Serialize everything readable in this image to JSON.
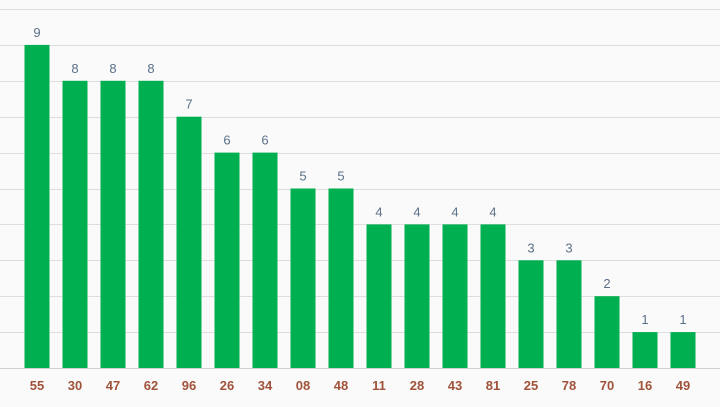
{
  "chart_data": {
    "type": "bar",
    "categories": [
      "55",
      "30",
      "47",
      "62",
      "96",
      "26",
      "34",
      "08",
      "48",
      "11",
      "28",
      "43",
      "81",
      "25",
      "78",
      "70",
      "16",
      "49"
    ],
    "values": [
      9,
      8,
      8,
      8,
      7,
      6,
      6,
      5,
      5,
      4,
      4,
      4,
      4,
      3,
      3,
      2,
      1,
      1
    ],
    "ylim": [
      0,
      10
    ],
    "grid": true,
    "legend": "none",
    "colors": {
      "bar": "#00b050",
      "value_label": "#5b7088",
      "category_label": "#a0523a",
      "grid": "#dedede"
    }
  }
}
